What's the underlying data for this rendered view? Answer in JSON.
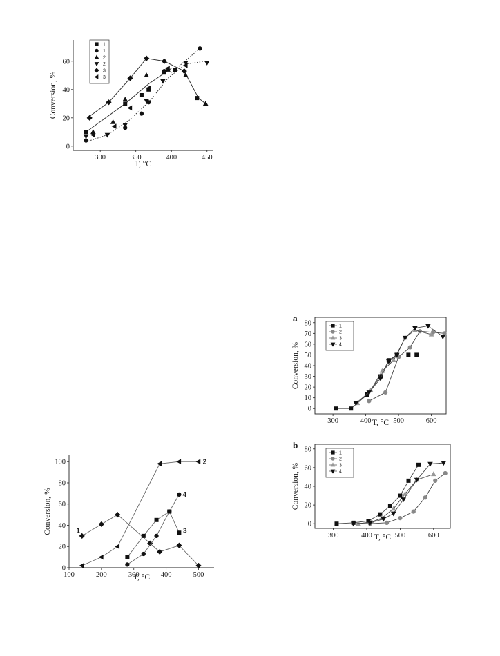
{
  "chart_data": [
    {
      "type": "scatter",
      "title": "",
      "xlabel": "T, °C",
      "ylabel": "Conversion, %",
      "xlim": [
        262,
        458
      ],
      "ylim": [
        -3,
        75
      ],
      "xticks": [
        300,
        350,
        400,
        450
      ],
      "yticks": [
        0,
        20,
        40,
        60
      ],
      "legend": {
        "placement": "top-left",
        "entries": [
          "1",
          "1",
          "2",
          "2",
          "3",
          "3"
        ]
      },
      "series": [
        {
          "name": "1",
          "marker": "square",
          "line": "none",
          "points": [
            [
              280,
              10
            ],
            [
              335,
              30
            ],
            [
              358,
              36
            ],
            [
              368,
              40
            ],
            [
              390,
              52
            ],
            [
              405,
              54
            ],
            [
              436,
              34
            ]
          ]
        },
        {
          "name": "1",
          "marker": "circle",
          "line": "none",
          "points": [
            [
              280,
              4
            ],
            [
              335,
              13
            ],
            [
              358,
              23
            ],
            [
              368,
              31
            ],
            [
              390,
              53
            ],
            [
              405,
              54
            ],
            [
              440,
              69
            ]
          ]
        },
        {
          "name": "2",
          "marker": "triangle-up",
          "line": "none",
          "points": [
            [
              290,
              10
            ],
            [
              318,
              17
            ],
            [
              335,
              33
            ],
            [
              365,
              50
            ],
            [
              395,
              54
            ],
            [
              420,
              50
            ],
            [
              448,
              30
            ]
          ]
        },
        {
          "name": "2",
          "marker": "triangle-down",
          "line": "none",
          "points": [
            [
              280,
              7
            ],
            [
              310,
              8
            ],
            [
              335,
              15
            ],
            [
              365,
              32
            ],
            [
              388,
              46
            ],
            [
              420,
              59
            ],
            [
              450,
              59
            ]
          ]
        },
        {
          "name": "3",
          "marker": "diamond",
          "line": "none",
          "points": [
            [
              285,
              20
            ],
            [
              312,
              31
            ],
            [
              342,
              48
            ],
            [
              365,
              62
            ],
            [
              390,
              60
            ],
            [
              418,
              53
            ]
          ]
        },
        {
          "name": "3",
          "marker": "triangle-left",
          "line": "none",
          "points": [
            [
              290,
              8
            ],
            [
              320,
              14
            ],
            [
              342,
              27
            ],
            [
              368,
              41
            ],
            [
              395,
              55
            ],
            [
              420,
              57
            ]
          ]
        }
      ],
      "lines": [
        {
          "style": "solid",
          "points": [
            [
              280,
              10
            ],
            [
              335,
              30
            ],
            [
              368,
              44
            ],
            [
              400,
              55
            ]
          ]
        },
        {
          "style": "solid",
          "points": [
            [
              282,
              20
            ],
            [
              312,
              31
            ],
            [
              342,
              48
            ],
            [
              365,
              62
            ],
            [
              390,
              60
            ],
            [
              418,
              53
            ],
            [
              438,
              34
            ],
            [
              448,
              30
            ]
          ]
        },
        {
          "style": "dotted",
          "points": [
            [
              280,
              3
            ],
            [
              310,
              8
            ],
            [
              340,
              18
            ],
            [
              370,
              32
            ],
            [
              395,
              48
            ],
            [
              420,
              58
            ],
            [
              448,
              60
            ]
          ]
        },
        {
          "style": "dotted",
          "points": [
            [
              400,
              52
            ],
            [
              440,
              69
            ]
          ]
        }
      ]
    },
    {
      "type": "line",
      "title": "",
      "xlabel": "T, °C",
      "ylabel": "Conversion, %",
      "xlim": [
        100,
        548
      ],
      "ylim": [
        0,
        106
      ],
      "xticks": [
        100,
        200,
        300,
        400,
        500
      ],
      "yticks": [
        0,
        20,
        40,
        60,
        80,
        100
      ],
      "series": [
        {
          "name": "1",
          "marker": "diamond",
          "points": [
            [
              140,
              30
            ],
            [
              200,
              41
            ],
            [
              250,
              50
            ],
            [
              350,
              23
            ],
            [
              380,
              15
            ],
            [
              440,
              21
            ],
            [
              500,
              2
            ]
          ]
        },
        {
          "name": "2",
          "marker": "triangle-left",
          "points": [
            [
              140,
              2
            ],
            [
              200,
              10
            ],
            [
              250,
              20
            ],
            [
              380,
              98
            ],
            [
              440,
              100
            ],
            [
              500,
              100
            ]
          ]
        },
        {
          "name": "3",
          "marker": "square",
          "points": [
            [
              280,
              10
            ],
            [
              330,
              30
            ],
            [
              370,
              45
            ],
            [
              410,
              53
            ],
            [
              440,
              33
            ]
          ]
        },
        {
          "name": "4",
          "marker": "circle",
          "points": [
            [
              280,
              3
            ],
            [
              330,
              13
            ],
            [
              370,
              30
            ],
            [
              410,
              53
            ],
            [
              440,
              69
            ]
          ]
        }
      ]
    },
    {
      "type": "line",
      "title": "",
      "panel_label": "a",
      "xlabel": "T, °C",
      "ylabel": "Conversion, %",
      "xlim": [
        245,
        645
      ],
      "ylim": [
        -5,
        85
      ],
      "xticks": [
        300,
        400,
        500,
        600
      ],
      "yticks": [
        0,
        10,
        20,
        30,
        40,
        50,
        60,
        70,
        80
      ],
      "legend": {
        "placement": "top-left",
        "entries": [
          "1",
          "2",
          "3",
          "4"
        ]
      },
      "series": [
        {
          "name": "1",
          "marker": "square",
          "color": "#111111",
          "points": [
            [
              310,
              0
            ],
            [
              355,
              0
            ],
            [
              405,
              13
            ],
            [
              445,
              30
            ],
            [
              470,
              45
            ],
            [
              495,
              50
            ],
            [
              530,
              50
            ],
            [
              555,
              50
            ]
          ]
        },
        {
          "name": "2",
          "marker": "circle",
          "color": "#888888",
          "points": [
            [
              410,
              7
            ],
            [
              460,
              15
            ],
            [
              500,
              48
            ],
            [
              535,
              57
            ],
            [
              565,
              72
            ],
            [
              605,
              71
            ],
            [
              640,
              70
            ]
          ]
        },
        {
          "name": "3",
          "marker": "triangle-up",
          "color": "#999999",
          "points": [
            [
              375,
              5
            ],
            [
              415,
              17
            ],
            [
              450,
              35
            ],
            [
              485,
              45
            ],
            [
              520,
              66
            ],
            [
              550,
              73
            ],
            [
              600,
              69
            ]
          ]
        },
        {
          "name": "4",
          "marker": "triangle-down",
          "color": "#111111",
          "points": [
            [
              370,
              5
            ],
            [
              410,
              15
            ],
            [
              445,
              28
            ],
            [
              470,
              44
            ],
            [
              495,
              50
            ],
            [
              520,
              66
            ],
            [
              550,
              75
            ],
            [
              590,
              77
            ],
            [
              635,
              67
            ]
          ]
        }
      ]
    },
    {
      "type": "line",
      "title": "",
      "panel_label": "b",
      "xlabel": "T, °C",
      "ylabel": "Conversion, %",
      "xlim": [
        245,
        650
      ],
      "ylim": [
        -5,
        85
      ],
      "xticks": [
        300,
        400,
        500,
        600
      ],
      "yticks": [
        0,
        20,
        40,
        60,
        80
      ],
      "legend": {
        "placement": "top-left",
        "entries": [
          "1",
          "2",
          "3",
          "4"
        ]
      },
      "series": [
        {
          "name": "1",
          "marker": "square",
          "color": "#111111",
          "points": [
            [
              310,
              0
            ],
            [
              360,
              1
            ],
            [
              405,
              3
            ],
            [
              440,
              10
            ],
            [
              470,
              19
            ],
            [
              500,
              30
            ],
            [
              525,
              46
            ],
            [
              555,
              63
            ]
          ]
        },
        {
          "name": "2",
          "marker": "circle",
          "color": "#888888",
          "points": [
            [
              410,
              0
            ],
            [
              460,
              1
            ],
            [
              500,
              6
            ],
            [
              540,
              13
            ],
            [
              575,
              28
            ],
            [
              605,
              46
            ],
            [
              635,
              54
            ]
          ]
        },
        {
          "name": "3",
          "marker": "triangle-up",
          "color": "#999999",
          "points": [
            [
              375,
              0
            ],
            [
              415,
              2
            ],
            [
              445,
              6
            ],
            [
              480,
              16
            ],
            [
              515,
              32
            ],
            [
              550,
              47
            ],
            [
              600,
              53
            ]
          ]
        },
        {
          "name": "4",
          "marker": "triangle-down",
          "color": "#111111",
          "points": [
            [
              360,
              0
            ],
            [
              410,
              1
            ],
            [
              450,
              5
            ],
            [
              480,
              11
            ],
            [
              510,
              26
            ],
            [
              550,
              47
            ],
            [
              590,
              64
            ],
            [
              630,
              65
            ]
          ]
        }
      ]
    }
  ]
}
